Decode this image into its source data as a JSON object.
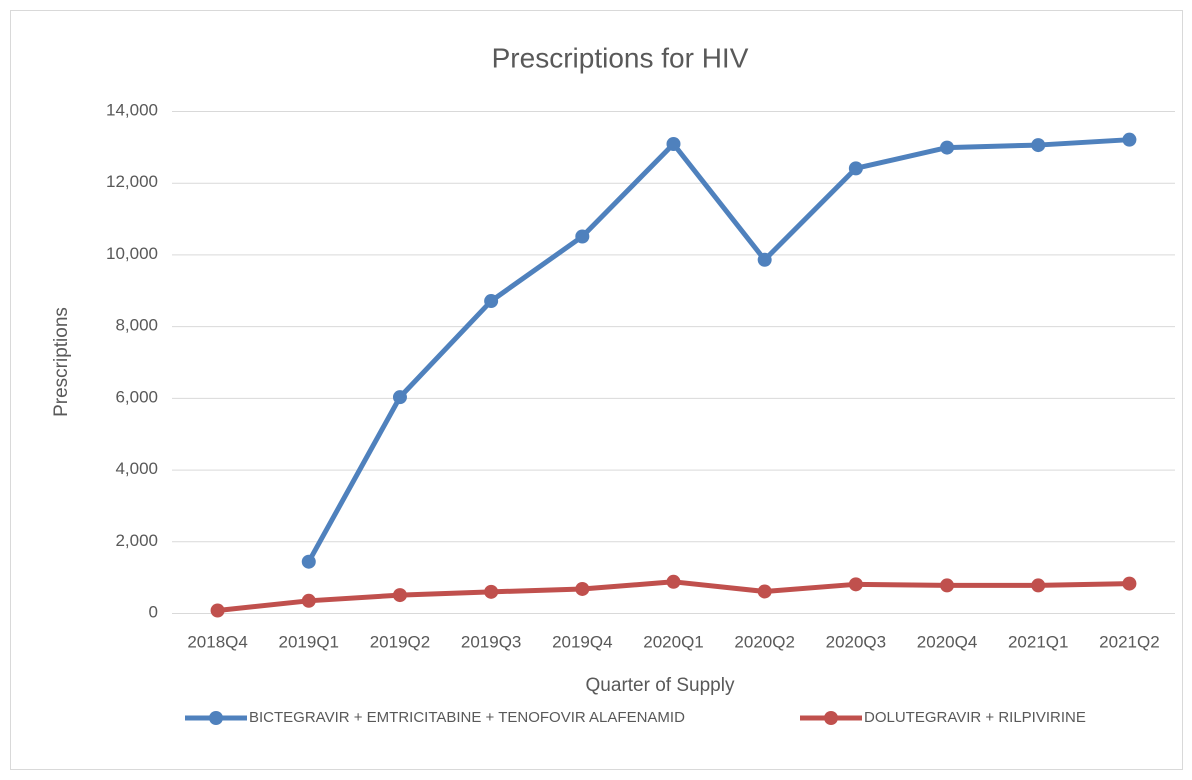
{
  "chart_data": {
    "type": "line",
    "title": "Prescriptions for HIV",
    "x_label": "Quarter of Supply",
    "y_label": "Prescriptions",
    "categories": [
      "2018Q4",
      "2019Q1",
      "2019Q2",
      "2019Q3",
      "2019Q4",
      "2020Q1",
      "2020Q2",
      "2020Q3",
      "2020Q4",
      "2021Q1",
      "2021Q2"
    ],
    "series": [
      {
        "name": "BICTEGRAVIR + EMTRICITABINE + TENOFOVIR ALAFENAMID",
        "color": "#4f81bd",
        "values": [
          null,
          1430,
          6020,
          8700,
          10500,
          13080,
          9850,
          12400,
          12980,
          13050,
          13200
        ]
      },
      {
        "name": "DOLUTEGRAVIR + RILPIVIRINE",
        "color": "#c0504d",
        "values": [
          70,
          340,
          500,
          590,
          670,
          870,
          600,
          800,
          770,
          770,
          820
        ]
      }
    ],
    "ylim": [
      0,
      14000
    ],
    "yticks": [
      0,
      {
        "value": 2000,
        "label": "2,000"
      },
      {
        "value": 4000,
        "label": "4,000"
      },
      {
        "value": 6000,
        "label": "6,000"
      },
      {
        "value": 8000,
        "label": "8,000"
      },
      {
        "value": 10000,
        "label": "10,000"
      },
      {
        "value": 12000,
        "label": "12,000"
      },
      {
        "value": 14000,
        "label": "14,000"
      }
    ],
    "grid": true,
    "legend": "bottom"
  }
}
